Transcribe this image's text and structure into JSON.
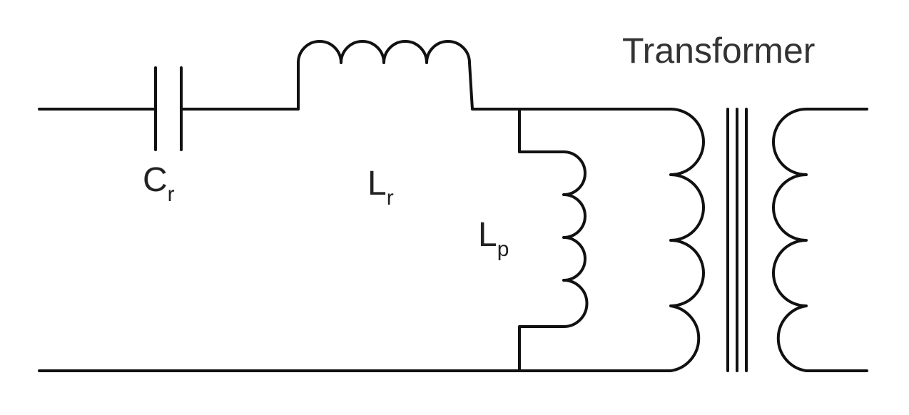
{
  "diagram": {
    "title": "Transformer",
    "components": {
      "capacitor": {
        "letter": "C",
        "subscript": "r"
      },
      "series_inductor": {
        "letter": "L",
        "subscript": "r"
      },
      "parallel_inductor": {
        "letter": "L",
        "subscript": "p"
      }
    }
  }
}
